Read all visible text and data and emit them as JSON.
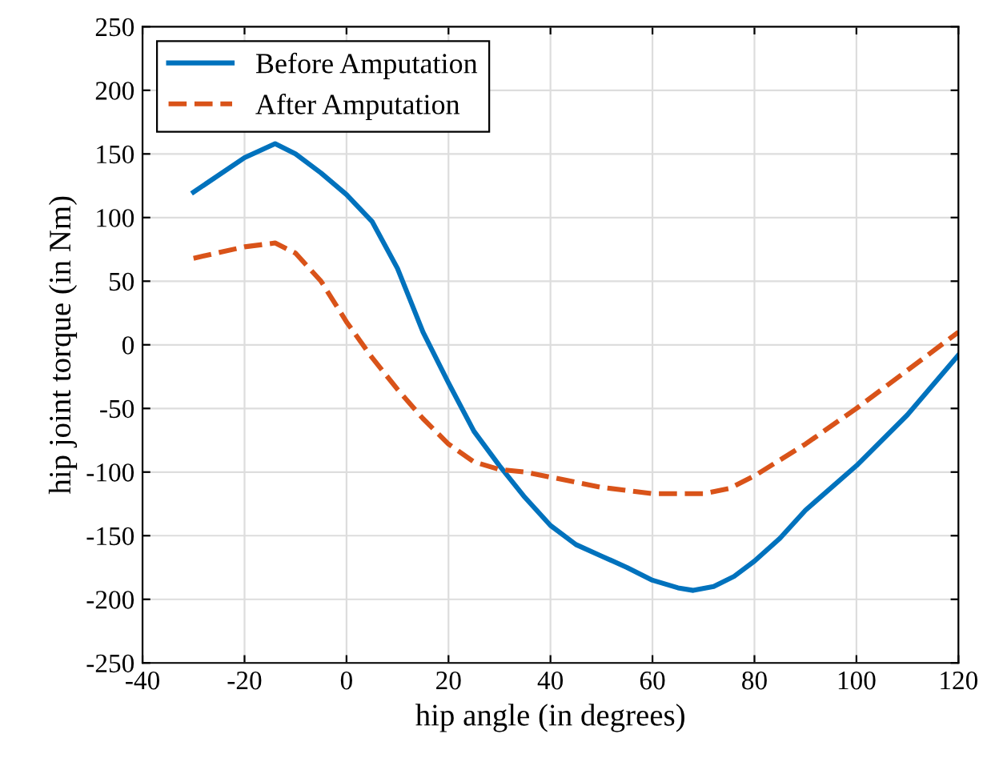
{
  "chart_data": {
    "type": "line",
    "xlabel": "hip angle (in degrees)",
    "ylabel": "hip joint torque (in Nm)",
    "xlim": [
      -40,
      120
    ],
    "xticks": [
      -40,
      -20,
      0,
      20,
      40,
      60,
      80,
      100,
      120
    ],
    "ylim": [
      -250,
      250
    ],
    "yticks": [
      -250,
      -200,
      -150,
      -100,
      -50,
      0,
      50,
      100,
      150,
      200,
      250
    ],
    "grid": true,
    "legend": "top left",
    "marker": "none",
    "series": [
      {
        "name": "Before Amputation",
        "color": "#0072bd",
        "line_style": "solid",
        "x": [
          -30,
          -20,
          -14,
          -10,
          -5,
          0,
          5,
          10,
          15,
          20,
          25,
          30,
          35,
          40,
          45,
          50,
          55,
          60,
          65,
          68,
          72,
          76,
          80,
          85,
          90,
          100,
          110,
          120
        ],
        "values": [
          120,
          147,
          158,
          150,
          135,
          118,
          97,
          60,
          10,
          -30,
          -68,
          -95,
          -120,
          -142,
          -157,
          -166,
          -175,
          -185,
          -191,
          -193,
          -190,
          -182,
          -170,
          -152,
          -130,
          -95,
          -55,
          -8
        ]
      },
      {
        "name": "After Amputation",
        "color": "#d95319",
        "line_style": "dashed",
        "x": [
          -30,
          -20,
          -14,
          -10,
          -5,
          0,
          5,
          10,
          15,
          20,
          25,
          30,
          35,
          40,
          45,
          50,
          60,
          70,
          75,
          80,
          90,
          100,
          110,
          120
        ],
        "values": [
          68,
          77,
          80,
          72,
          50,
          18,
          -10,
          -35,
          -58,
          -78,
          -92,
          -98,
          -100,
          -104,
          -108,
          -112,
          -117,
          -117,
          -113,
          -103,
          -78,
          -50,
          -20,
          10
        ]
      }
    ]
  }
}
